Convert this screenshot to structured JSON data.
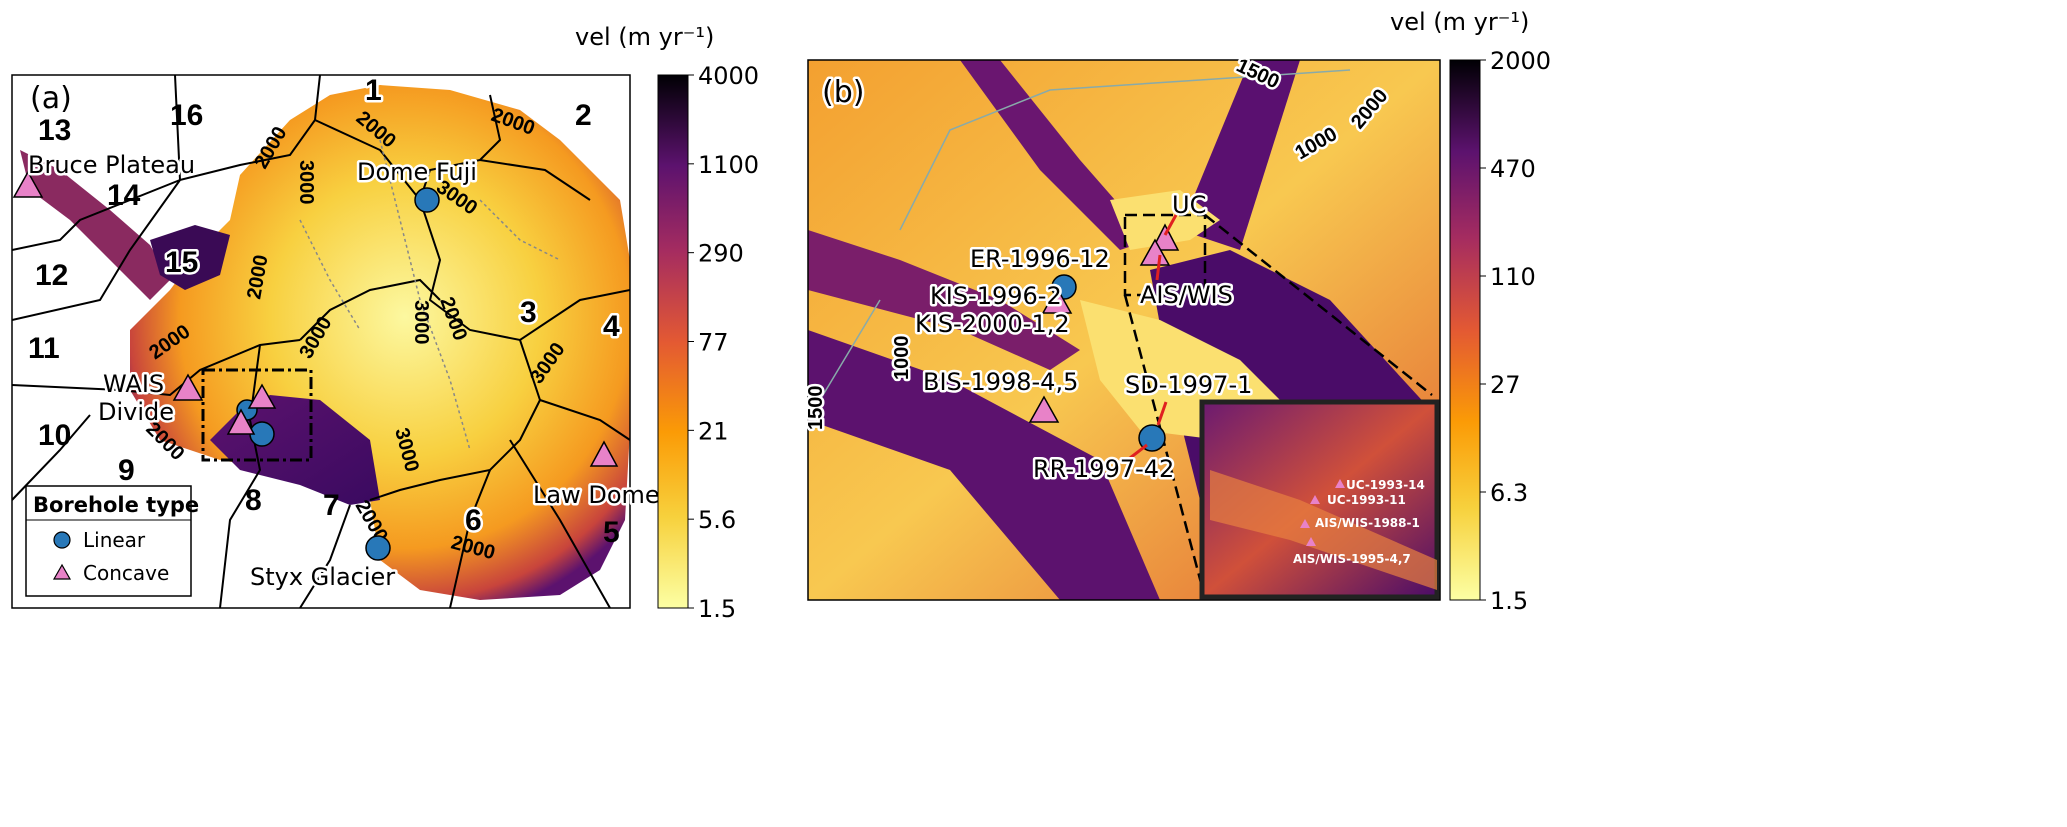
{
  "panel_a": {
    "label": "(a)",
    "colorbar": {
      "title": "vel (m yr⁻¹)",
      "ticks": [
        "4000",
        "1100",
        "290",
        "77",
        "21",
        "5.6",
        "1.5"
      ],
      "colormap": "inferno_r"
    },
    "basins": [
      "1",
      "2",
      "3",
      "4",
      "5",
      "6",
      "7",
      "8",
      "9",
      "10",
      "11",
      "12",
      "13",
      "14",
      "15",
      "16"
    ],
    "contours": [
      "2000",
      "3000",
      "2000",
      "3000",
      "2000",
      "3000",
      "2000",
      "2000",
      "3000",
      "3000",
      "2000",
      "2000",
      "2000",
      "2000",
      "3000"
    ],
    "sites": [
      {
        "name": "Bruce Plateau",
        "type": "Concave"
      },
      {
        "name": "Dome Fuji",
        "type": "Linear"
      },
      {
        "name": "WAIS Divide",
        "lines": [
          "WAIS",
          "Divide"
        ],
        "type": "Concave"
      },
      {
        "name": "Law Dome",
        "type": "Concave"
      },
      {
        "name": "Styx Glacier",
        "type": "Linear"
      }
    ],
    "legend": {
      "title": "Borehole type",
      "items": [
        {
          "label": "Linear",
          "color": "#2878b8",
          "shape": "circle"
        },
        {
          "label": "Concave",
          "color": "#e882c8",
          "shape": "triangle"
        }
      ]
    }
  },
  "panel_b": {
    "label": "(b)",
    "colorbar": {
      "title": "vel (m yr⁻¹)",
      "ticks": [
        "2000",
        "470",
        "110",
        "27",
        "6.3",
        "1.5"
      ],
      "colormap": "inferno_r"
    },
    "contours": [
      "1500",
      "1000",
      "2000",
      "1000",
      "1500"
    ],
    "sites": [
      "UC",
      "ER-1996-12",
      "AIS/WIS",
      "KIS-1996-2",
      "KIS-2000-1,2",
      "BIS-1998-4,5",
      "SD-1997-1",
      "RR-1997-42"
    ],
    "inset_sites": [
      "UC-1993-14",
      "UC-1993-11",
      "AIS/WIS-1988-1",
      "AIS/WIS-1995-4,7"
    ]
  },
  "colors": {
    "linear": "#2878b8",
    "concave": "#e882c8",
    "arrow": "#e02020"
  }
}
